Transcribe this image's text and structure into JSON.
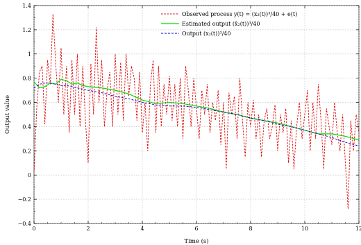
{
  "chart_data": {
    "type": "line",
    "title": "",
    "xlabel": "Time (s)",
    "ylabel": "Output value",
    "xlim": [
      0,
      12
    ],
    "ylim": [
      -0.4,
      1.4
    ],
    "xticks": [
      0,
      2,
      4,
      6,
      8,
      10,
      12
    ],
    "xtick_labels": [
      "0",
      "2",
      "4",
      "6",
      "8",
      "10",
      "12"
    ],
    "yticks": [
      -0.4,
      -0.2,
      0,
      0.2,
      0.4,
      0.6,
      0.8,
      1,
      1.2,
      1.4
    ],
    "ytick_labels": [
      "−0.4",
      "−0.2",
      "0",
      "0.2",
      "0.4",
      "0.6",
      "0.8",
      "1",
      "1.2",
      "1.4"
    ],
    "grid": true,
    "legend_position": "top-right",
    "series": [
      {
        "name": "Observed process y(t) = (x₂(t))³/40 + e(t)",
        "color": "#e00000",
        "style": "dashed",
        "x": [
          0,
          0.1,
          0.2,
          0.3,
          0.4,
          0.5,
          0.6,
          0.7,
          0.8,
          0.9,
          1.0,
          1.1,
          1.2,
          1.3,
          1.4,
          1.5,
          1.6,
          1.7,
          1.8,
          1.9,
          2.0,
          2.1,
          2.2,
          2.3,
          2.4,
          2.5,
          2.6,
          2.7,
          2.8,
          2.9,
          3.0,
          3.1,
          3.2,
          3.3,
          3.4,
          3.5,
          3.6,
          3.7,
          3.8,
          3.9,
          4.0,
          4.1,
          4.2,
          4.3,
          4.4,
          4.5,
          4.6,
          4.7,
          4.8,
          4.9,
          5.0,
          5.1,
          5.2,
          5.3,
          5.4,
          5.5,
          5.6,
          5.7,
          5.8,
          5.9,
          6.0,
          6.1,
          6.2,
          6.3,
          6.4,
          6.5,
          6.6,
          6.7,
          6.8,
          6.9,
          7.0,
          7.1,
          7.2,
          7.3,
          7.4,
          7.5,
          7.6,
          7.7,
          7.8,
          7.9,
          8.0,
          8.1,
          8.2,
          8.3,
          8.4,
          8.5,
          8.6,
          8.7,
          8.8,
          8.9,
          9.0,
          9.1,
          9.2,
          9.3,
          9.4,
          9.5,
          9.6,
          9.7,
          9.8,
          9.9,
          10.0,
          10.1,
          10.2,
          10.3,
          10.4,
          10.5,
          10.6,
          10.7,
          10.8,
          10.9,
          11.0,
          11.1,
          11.2,
          11.3,
          11.4,
          11.5,
          11.6,
          11.7,
          11.8,
          11.9,
          12.0
        ],
        "y": [
          0.02,
          0.55,
          0.85,
          0.9,
          0.42,
          0.95,
          0.75,
          1.33,
          0.92,
          0.6,
          1.05,
          0.5,
          0.9,
          0.35,
          0.95,
          0.5,
          1.0,
          0.4,
          0.9,
          0.45,
          0.1,
          0.92,
          0.5,
          1.22,
          0.6,
          0.95,
          0.4,
          0.7,
          0.85,
          0.4,
          1.0,
          0.5,
          0.93,
          0.45,
          1.0,
          0.65,
          0.9,
          0.8,
          0.45,
          0.85,
          0.35,
          0.6,
          0.2,
          0.75,
          0.95,
          0.35,
          0.9,
          0.4,
          0.75,
          0.5,
          0.82,
          0.45,
          0.75,
          0.4,
          0.8,
          0.3,
          0.9,
          0.7,
          0.4,
          0.8,
          0.55,
          0.3,
          0.7,
          0.5,
          0.75,
          0.35,
          0.6,
          0.45,
          0.7,
          0.25,
          0.6,
          0.05,
          0.68,
          0.5,
          0.65,
          0.3,
          0.8,
          0.45,
          0.15,
          0.6,
          0.4,
          0.62,
          0.3,
          0.5,
          0.15,
          0.45,
          0.55,
          0.3,
          0.4,
          0.58,
          0.2,
          0.5,
          0.35,
          0.55,
          0.1,
          0.45,
          0.05,
          0.4,
          0.6,
          0.3,
          0.5,
          0.7,
          0.2,
          0.6,
          0.3,
          0.75,
          0.45,
          0.05,
          0.55,
          0.4,
          0.25,
          0.6,
          0.35,
          0.2,
          0.5,
          0.1,
          -0.28,
          0.45,
          0.2,
          0.5,
          0.35
        ]
      },
      {
        "name": "Estimated output (x̂₂(t))³/40",
        "color": "#00dd00",
        "style": "solid",
        "x": [
          0,
          0.2,
          0.4,
          0.6,
          0.8,
          1.0,
          1.2,
          1.4,
          1.6,
          1.8,
          2.0,
          2.5,
          3.0,
          3.5,
          4.0,
          4.5,
          5.0,
          5.5,
          6.0,
          6.5,
          7.0,
          7.5,
          8.0,
          8.5,
          9.0,
          9.5,
          10.0,
          10.5,
          11.0,
          11.5,
          12.0
        ],
        "y": [
          0.77,
          0.72,
          0.73,
          0.76,
          0.75,
          0.79,
          0.78,
          0.75,
          0.76,
          0.74,
          0.73,
          0.72,
          0.7,
          0.67,
          0.62,
          0.59,
          0.6,
          0.59,
          0.57,
          0.55,
          0.52,
          0.5,
          0.47,
          0.45,
          0.43,
          0.4,
          0.37,
          0.34,
          0.34,
          0.32,
          0.29
        ]
      },
      {
        "name": "Output (x₂(t))³/40",
        "color": "#0000cc",
        "style": "dashed",
        "x": [
          0,
          0.2,
          0.4,
          0.6,
          0.8,
          1.0,
          1.2,
          1.4,
          1.6,
          1.8,
          2.0,
          2.5,
          3.0,
          3.5,
          4.0,
          4.5,
          5.0,
          5.5,
          6.0,
          6.5,
          7.0,
          7.5,
          8.0,
          8.5,
          9.0,
          9.5,
          10.0,
          10.5,
          11.0,
          11.5,
          12.0
        ],
        "y": [
          0.72,
          0.75,
          0.76,
          0.76,
          0.75,
          0.74,
          0.74,
          0.73,
          0.72,
          0.71,
          0.7,
          0.68,
          0.65,
          0.63,
          0.6,
          0.58,
          0.57,
          0.57,
          0.56,
          0.54,
          0.52,
          0.5,
          0.47,
          0.45,
          0.42,
          0.4,
          0.37,
          0.34,
          0.31,
          0.27,
          0.24
        ]
      }
    ]
  }
}
